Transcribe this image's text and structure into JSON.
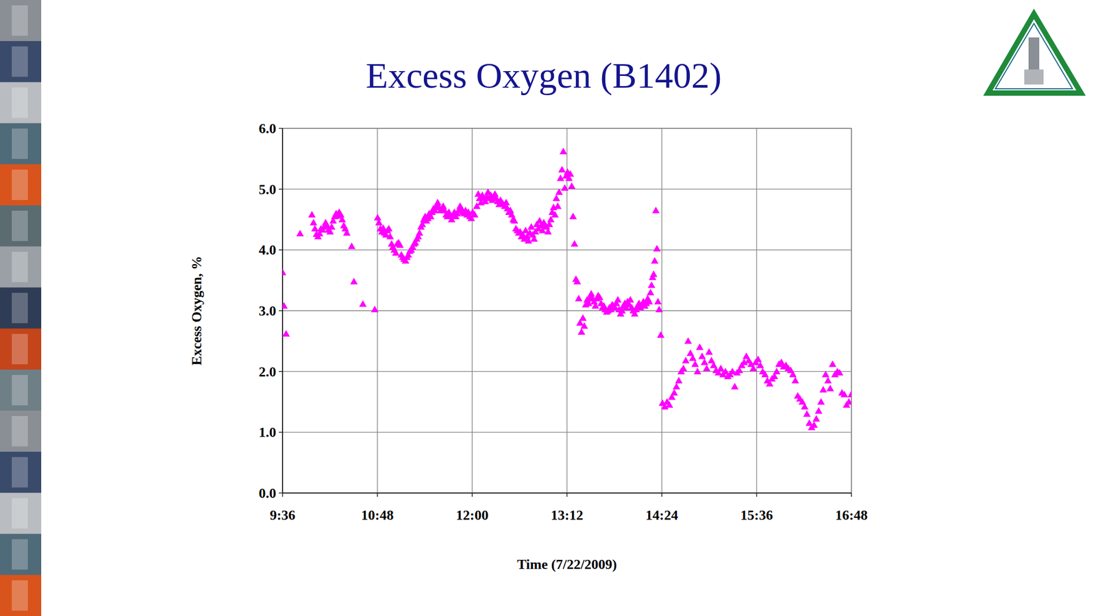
{
  "chart_data": {
    "type": "scatter",
    "title": "Excess Oxygen (B1402)",
    "x_label": "Time (7/22/2009)",
    "y_label": "Excess Oxygen, %",
    "color": "#ff00ff",
    "marker": "triangle",
    "grid": true,
    "xlim": [
      576,
      1008
    ],
    "xticks": [
      {
        "value": 576,
        "label": "9:36"
      },
      {
        "value": 648,
        "label": "10:48"
      },
      {
        "value": 720,
        "label": "12:00"
      },
      {
        "value": 792,
        "label": "13:12"
      },
      {
        "value": 864,
        "label": "14:24"
      },
      {
        "value": 936,
        "label": "15:36"
      },
      {
        "value": 1008,
        "label": "16:48"
      }
    ],
    "ylim": [
      0,
      6
    ],
    "yticks": [
      {
        "value": 0,
        "label": "0.0"
      },
      {
        "value": 1,
        "label": "1.0"
      },
      {
        "value": 2,
        "label": "2.0"
      },
      {
        "value": 3,
        "label": "3.0"
      },
      {
        "value": 4,
        "label": "4.0"
      },
      {
        "value": 5,
        "label": "5.0"
      },
      {
        "value": 6,
        "label": "6.0"
      }
    ],
    "x": [
      576.0,
      577.1,
      578.7,
      589.3,
      598.3,
      599.5,
      600.6,
      601.8,
      602.9,
      604.1,
      605.2,
      606.4,
      607.5,
      608.7,
      609.8,
      611.0,
      612.1,
      613.3,
      614.4,
      615.6,
      616.7,
      617.9,
      619.0,
      620.2,
      621.3,
      622.5,
      623.6,
      624.8,
      628.5,
      630.2,
      637.0,
      646.0,
      648.2,
      649.2,
      650.3,
      651.4,
      652.4,
      653.5,
      654.5,
      655.6,
      656.7,
      657.7,
      658.8,
      659.8,
      660.9,
      662.0,
      663.0,
      664.1,
      665.2,
      666.2,
      667.3,
      668.3,
      669.4,
      670.5,
      671.5,
      672.6,
      673.7,
      674.7,
      675.8,
      676.8,
      677.9,
      679.0,
      680.0,
      681.1,
      682.1,
      683.2,
      684.3,
      685.3,
      686.4,
      687.4,
      688.5,
      689.6,
      690.6,
      691.7,
      692.7,
      693.8,
      694.9,
      695.9,
      697.0,
      698.0,
      699.1,
      700.2,
      701.2,
      702.3,
      703.3,
      704.4,
      705.5,
      706.5,
      707.6,
      708.6,
      709.7,
      710.8,
      711.8,
      712.9,
      714.0,
      715.0,
      716.1,
      717.1,
      718.2,
      719.3,
      720.3,
      721.9,
      723.5,
      724.6,
      725.6,
      726.7,
      727.7,
      728.8,
      729.9,
      730.9,
      732.0,
      733.0,
      734.1,
      735.2,
      736.2,
      737.3,
      738.3,
      739.4,
      740.5,
      741.5,
      742.6,
      743.6,
      744.7,
      745.8,
      746.8,
      747.9,
      749.0,
      750.0,
      751.1,
      752.1,
      753.2,
      754.3,
      755.3,
      756.4,
      757.4,
      758.5,
      759.6,
      760.6,
      761.7,
      762.7,
      763.8,
      764.9,
      765.9,
      767.0,
      768.0,
      769.1,
      770.2,
      771.2,
      772.3,
      773.3,
      774.4,
      775.5,
      776.5,
      777.6,
      778.6,
      779.7,
      780.8,
      781.8,
      782.9,
      783.9,
      785.0,
      786.0,
      787.1,
      788.2,
      789.2,
      790.3,
      791.3,
      792.4,
      793.5,
      794.5,
      795.6,
      796.6,
      797.7,
      798.8,
      799.8,
      800.9,
      801.9,
      803.0,
      804.1,
      805.1,
      806.2,
      807.3,
      808.3,
      809.4,
      810.4,
      811.5,
      812.6,
      813.6,
      814.7,
      815.7,
      816.8,
      817.9,
      818.9,
      820.0,
      821.0,
      822.1,
      823.2,
      824.2,
      825.3,
      826.3,
      827.4,
      828.5,
      829.5,
      830.6,
      831.6,
      832.7,
      833.8,
      834.8,
      835.9,
      836.9,
      838.0,
      839.1,
      840.1,
      841.2,
      842.3,
      843.4,
      844.5,
      845.6,
      846.7,
      847.8,
      848.9,
      850.0,
      851.1,
      852.2,
      853.3,
      854.4,
      855.4,
      856.2,
      857.0,
      857.8,
      858.6,
      859.5,
      860.3,
      861.1,
      862.0,
      863.2,
      864.5,
      866.3,
      868.0,
      869.8,
      871.6,
      873.4,
      875.1,
      876.9,
      878.7,
      880.4,
      882.2,
      884.0,
      885.7,
      887.5,
      889.3,
      891.1,
      892.8,
      894.6,
      896.4,
      898.1,
      899.9,
      901.7,
      903.4,
      905.2,
      907.0,
      908.8,
      910.5,
      912.3,
      914.1,
      915.8,
      917.6,
      919.4,
      921.1,
      922.9,
      924.7,
      926.5,
      928.2,
      930.0,
      931.8,
      933.5,
      935.3,
      937.1,
      938.8,
      940.6,
      942.4,
      944.2,
      945.9,
      947.7,
      949.5,
      951.2,
      953.0,
      954.8,
      956.5,
      958.3,
      960.1,
      961.9,
      963.6,
      965.4,
      967.2,
      968.9,
      970.7,
      972.5,
      974.2,
      976.0,
      977.8,
      979.6,
      981.3,
      983.1,
      984.9,
      986.6,
      988.4,
      990.2,
      991.9,
      993.7,
      995.5,
      997.3,
      999.0,
      1000.8,
      1002.6,
      1004.3,
      1006.1,
      1007.9
    ],
    "values": [
      3.63,
      3.08,
      2.62,
      4.27,
      4.58,
      4.45,
      4.35,
      4.26,
      4.22,
      4.27,
      4.35,
      4.33,
      4.38,
      4.45,
      4.4,
      4.33,
      4.3,
      4.38,
      4.48,
      4.55,
      4.6,
      4.56,
      4.62,
      4.58,
      4.5,
      4.4,
      4.35,
      4.28,
      4.06,
      3.48,
      3.11,
      3.02,
      4.53,
      4.45,
      4.35,
      4.3,
      4.36,
      4.28,
      4.25,
      4.32,
      4.35,
      4.22,
      4.1,
      4.05,
      4.0,
      3.95,
      4.1,
      4.12,
      4.08,
      3.92,
      3.88,
      3.85,
      3.82,
      3.88,
      3.92,
      3.98,
      4.0,
      4.05,
      4.1,
      4.12,
      4.18,
      4.22,
      4.28,
      4.38,
      4.42,
      4.5,
      4.55,
      4.48,
      4.52,
      4.6,
      4.55,
      4.62,
      4.68,
      4.65,
      4.72,
      4.78,
      4.7,
      4.65,
      4.68,
      4.72,
      4.65,
      4.58,
      4.55,
      4.62,
      4.55,
      4.5,
      4.58,
      4.62,
      4.55,
      4.6,
      4.65,
      4.72,
      4.68,
      4.62,
      4.6,
      4.65,
      4.58,
      4.62,
      4.55,
      4.52,
      4.62,
      4.58,
      4.72,
      4.92,
      4.85,
      4.78,
      4.9,
      4.85,
      4.8,
      4.88,
      4.95,
      4.85,
      4.9,
      4.82,
      4.88,
      4.92,
      4.85,
      4.8,
      4.75,
      4.82,
      4.78,
      4.75,
      4.72,
      4.78,
      4.68,
      4.62,
      4.65,
      4.58,
      4.5,
      4.48,
      4.35,
      4.32,
      4.28,
      4.3,
      4.22,
      4.25,
      4.18,
      4.32,
      4.22,
      4.15,
      4.28,
      4.38,
      4.25,
      4.18,
      4.3,
      4.42,
      4.35,
      4.48,
      4.4,
      4.32,
      4.45,
      4.4,
      4.38,
      4.3,
      4.42,
      4.5,
      4.62,
      4.7,
      4.58,
      4.85,
      4.72,
      4.95,
      5.18,
      5.32,
      5.62,
      5.02,
      5.22,
      5.28,
      5.18,
      5.25,
      5.05,
      4.55,
      4.1,
      3.52,
      3.48,
      3.2,
      2.8,
      2.65,
      2.88,
      2.75,
      3.1,
      3.18,
      3.12,
      3.22,
      3.28,
      3.2,
      3.15,
      3.08,
      3.2,
      3.25,
      3.22,
      3.12,
      3.05,
      3.08,
      3.02,
      2.98,
      3.0,
      3.05,
      3.02,
      3.1,
      3.08,
      3.05,
      3.12,
      3.18,
      3.02,
      2.95,
      3.0,
      3.08,
      3.12,
      3.05,
      3.15,
      3.1,
      3.18,
      3.05,
      3.0,
      2.95,
      3.02,
      3.08,
      3.12,
      3.05,
      3.1,
      3.15,
      3.08,
      3.12,
      3.2,
      3.15,
      3.3,
      3.42,
      3.55,
      3.6,
      3.82,
      4.65,
      4.02,
      3.15,
      3.02,
      2.6,
      1.48,
      1.42,
      1.5,
      1.45,
      1.58,
      1.65,
      1.75,
      1.85,
      2.0,
      2.05,
      2.18,
      2.5,
      2.3,
      2.22,
      2.12,
      2.0,
      2.4,
      2.25,
      2.15,
      2.05,
      2.32,
      2.18,
      2.1,
      2.02,
      1.98,
      2.05,
      1.95,
      2.0,
      1.92,
      1.95,
      2.0,
      1.75,
      1.98,
      2.02,
      2.1,
      2.15,
      2.25,
      2.18,
      2.12,
      2.05,
      2.15,
      2.2,
      2.1,
      2.0,
      1.95,
      1.85,
      1.8,
      1.88,
      1.92,
      2.0,
      2.12,
      2.15,
      2.08,
      2.1,
      2.05,
      2.02,
      1.95,
      1.85,
      1.6,
      1.55,
      1.5,
      1.42,
      1.3,
      1.15,
      1.08,
      1.12,
      1.22,
      1.35,
      1.5,
      1.7,
      1.95,
      1.85,
      1.72,
      2.12,
      1.95,
      2.0,
      1.98,
      1.65,
      1.62,
      1.45,
      1.5,
      1.62
    ]
  }
}
